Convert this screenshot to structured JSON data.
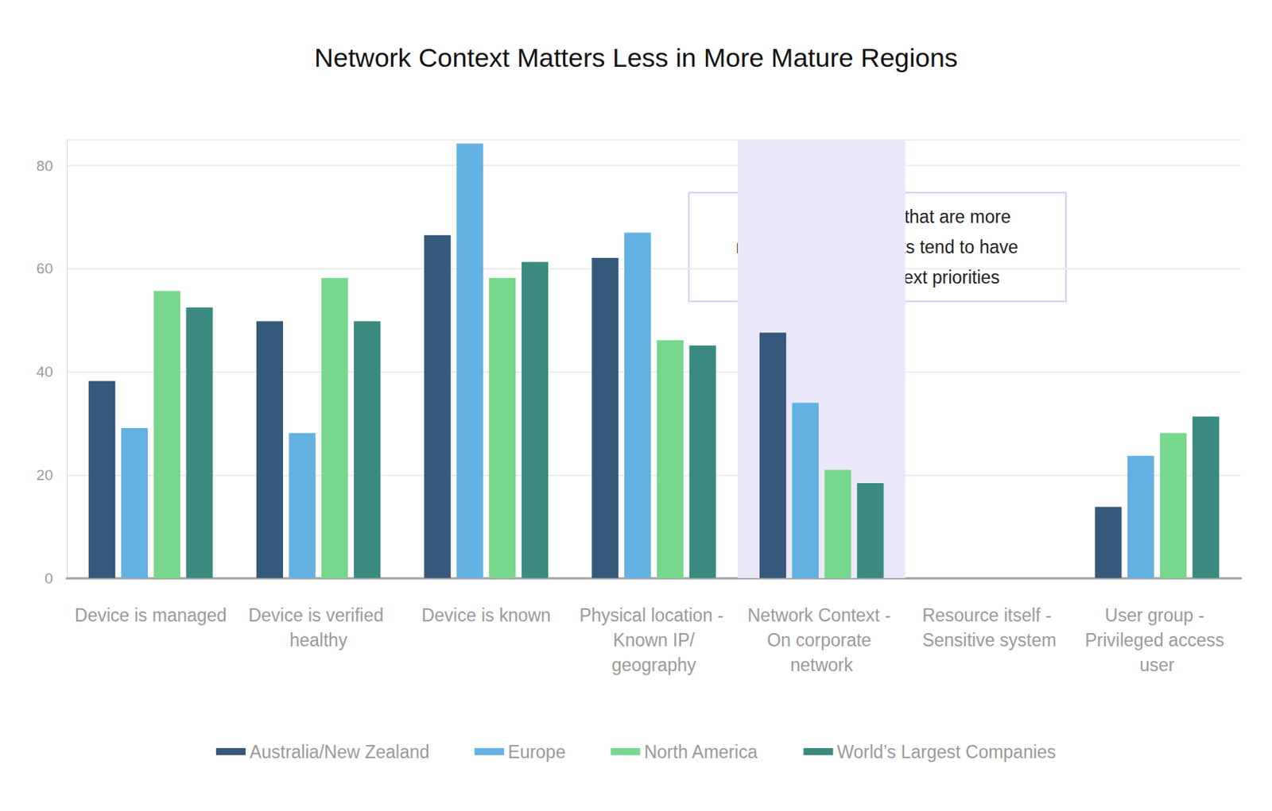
{
  "chart_data": {
    "type": "bar",
    "title": "Network Context Matters Less in More Mature Regions",
    "categories": [
      "Device is managed",
      "Device is verified healthy",
      "Device is known",
      "Physical location - Known IP/geography",
      "Network Context - On corporate network",
      "Resource itself - Sensitive system",
      "User group - Privileged access user"
    ],
    "series": [
      {
        "name": "Australia/New Zealand",
        "color": "#34597a",
        "values": [
          38.2,
          49.8,
          66.5,
          62.1,
          47.6,
          0,
          13.8
        ]
      },
      {
        "name": "Europe",
        "color": "#63b1e2",
        "values": [
          29.1,
          28.1,
          84.3,
          67,
          34,
          0,
          23.7
        ]
      },
      {
        "name": "North America",
        "color": "#77d78a",
        "values": [
          55.7,
          58.2,
          58.2,
          46.1,
          21,
          0,
          28.1
        ]
      },
      {
        "name": "World’s Largest Companies",
        "color": "#3a8a80",
        "values": [
          52.5,
          49.8,
          61.3,
          45.1,
          18.4,
          0,
          31.3
        ]
      }
    ],
    "annotation": {
      "text": "Geographic regions that are more\nmature in IAM projects tend to have\nlower network context priorities",
      "category": "Network Context - On corporate network"
    },
    "ylim": [
      0,
      85
    ],
    "yticks": [
      0,
      20,
      40,
      60,
      80
    ],
    "grid": true,
    "legend": "bottom"
  }
}
